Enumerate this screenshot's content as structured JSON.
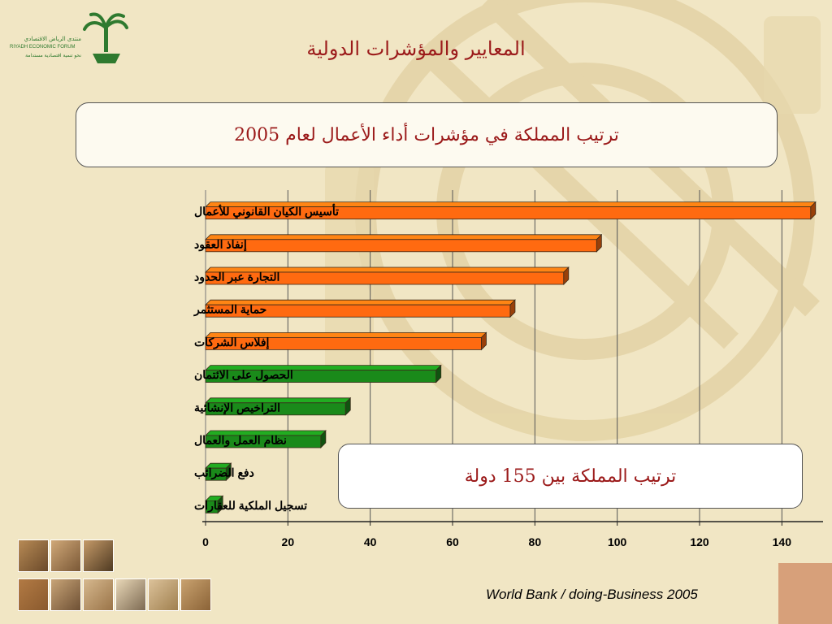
{
  "header": {
    "page_title": "المعايير والمؤشرات الدولية",
    "subtitle": "ترتيب المملكة في مؤشرات أداء الأعمال لعام 2005",
    "logo_text_ar": "منتدى الرياض الاقتصادي",
    "logo_text_en": "RIYADH ECONOMIC FORUM",
    "logo_tagline": "نحو تنمية اقتصادية مستدامة"
  },
  "callout": {
    "text": "ترتيب المملكة بين 155 دولة"
  },
  "footer": {
    "source": "World Bank / doing-Business 2005"
  },
  "colors": {
    "orange_bar": "#ff6a10",
    "green_bar": "#1a8a1a",
    "title_red": "#9b1a1a",
    "background": "#f1e6c4",
    "corner_block": "#d7a07a"
  },
  "chart_data": {
    "type": "bar",
    "orientation": "horizontal",
    "title": "ترتيب المملكة في مؤشرات أداء الأعمال لعام 2005",
    "categories": [
      "تأسيس الكيان القانوني للأعمال",
      "إنفاذ العقود",
      "التجارة عبر الحدود",
      "حماية المستثمر",
      "إفلاس الشركات",
      "الحصول على الائتمان",
      "التراخيص الإنشائية",
      "نظام العمل والعمال",
      "دفع الضرائب",
      "تسجيل الملكية للعقارات"
    ],
    "values": [
      147,
      95,
      87,
      74,
      67,
      56,
      34,
      28,
      5,
      3
    ],
    "bar_colors": [
      "orange",
      "orange",
      "orange",
      "orange",
      "orange",
      "green",
      "green",
      "green",
      "green",
      "green"
    ],
    "xlim": [
      0,
      150
    ],
    "xticks": [
      0,
      20,
      40,
      60,
      80,
      100,
      120,
      140
    ],
    "grid": "vertical",
    "legend": "none",
    "annotation": "ترتيب المملكة بين 155 دولة"
  }
}
